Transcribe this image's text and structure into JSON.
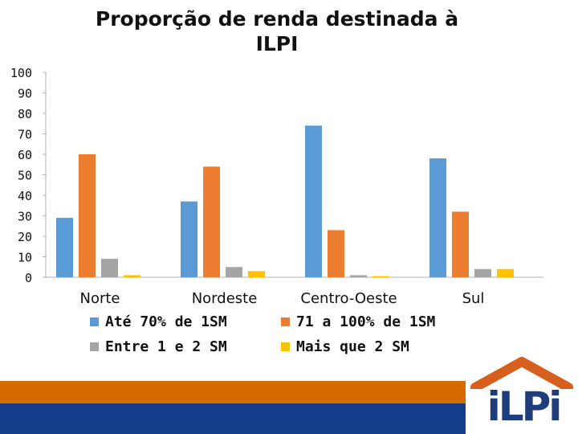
{
  "chart_data": {
    "type": "bar",
    "title": "Proporção de renda destinada à ILPI",
    "title_lines": [
      "Proporção de renda destinada à",
      "ILPI"
    ],
    "categories": [
      "Norte",
      "Nordeste",
      "Centro-Oeste",
      "Sul"
    ],
    "series": [
      {
        "name": "Até 70% de 1SM",
        "color": "#5B9BD5",
        "values": [
          29,
          37,
          74,
          58
        ]
      },
      {
        "name": "71 a 100% de 1SM",
        "color": "#ED7D31",
        "values": [
          60,
          54,
          23,
          32
        ]
      },
      {
        "name": "Entre 1 e 2 SM",
        "color": "#A5A5A5",
        "values": [
          9,
          5,
          1,
          4
        ]
      },
      {
        "name": "Mais que 2 SM",
        "color": "#FFC000",
        "values": [
          1,
          3,
          0.5,
          4
        ]
      }
    ],
    "ylim": [
      0,
      100
    ],
    "yticks": [
      0,
      10,
      20,
      30,
      40,
      50,
      60,
      70,
      80,
      90,
      100
    ],
    "grid": false,
    "legend_position": "bottom"
  },
  "branding": {
    "logo_text": "iLPi",
    "logo_color": "#1F3D7A",
    "roof_color": "#D65F1E",
    "footer_orange": "#D46A00",
    "footer_blue": "#133C8B"
  }
}
